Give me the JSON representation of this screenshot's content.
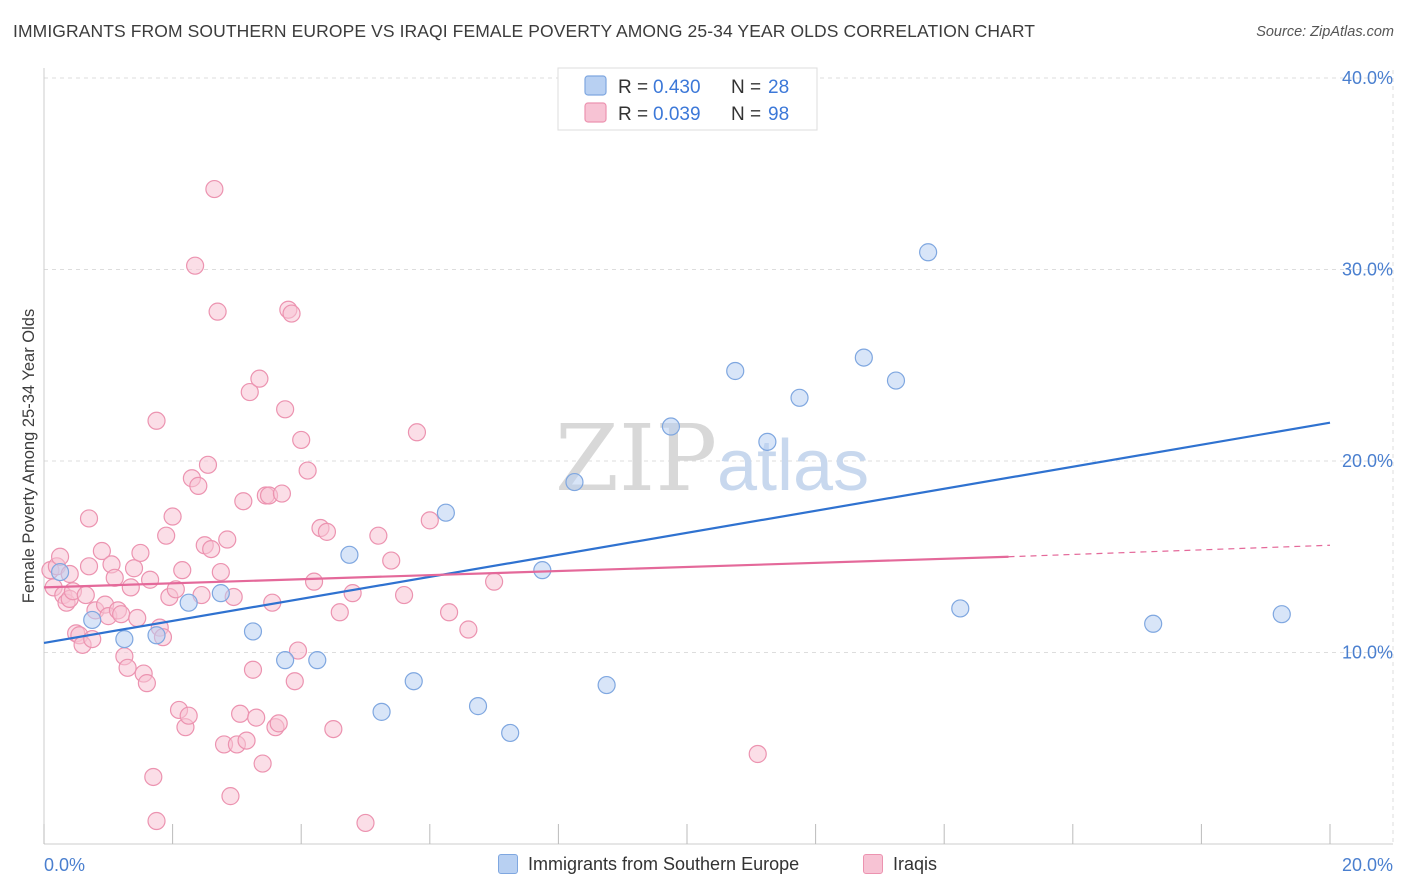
{
  "header": {
    "title": "IMMIGRANTS FROM SOUTHERN EUROPE VS IRAQI FEMALE POVERTY AMONG 25-34 YEAR OLDS CORRELATION CHART",
    "source": "Source: ZipAtlas.com"
  },
  "watermark": {
    "zip": "ZIP",
    "atlas": "atlas"
  },
  "legend": {
    "rows": [
      {
        "r_label": "R =",
        "r_value": "0.430",
        "n_label": "N =",
        "n_value": "28"
      },
      {
        "r_label": "R =",
        "r_value": "0.039",
        "n_label": "N =",
        "n_value": "98"
      }
    ]
  },
  "bottom_legend": {
    "blue": "Immigrants from Southern Europe",
    "pink": "Iraqis"
  },
  "colors": {
    "blue_fill": "#b8d0f2",
    "blue_stroke": "#7fa7e0",
    "blue_line": "#2f72d0",
    "pink_fill": "#f7c3d4",
    "pink_stroke": "#ec93b0",
    "pink_line": "#e4699a",
    "tick_text": "#4a7fcf",
    "grid": "#dddddd"
  },
  "chart_data": {
    "type": "scatter",
    "xlabel": "",
    "ylabel": "Female Poverty Among 25-34 Year Olds",
    "xlim": [
      0,
      20
    ],
    "ylim": [
      0,
      40
    ],
    "x_tick_labels": [
      {
        "value": 0,
        "label": "0.0%"
      },
      {
        "value": 20,
        "label": "20.0%"
      }
    ],
    "y_tick_labels": [
      {
        "value": 10,
        "label": "10.0%"
      },
      {
        "value": 20,
        "label": "20.0%"
      },
      {
        "value": 30,
        "label": "30.0%"
      },
      {
        "value": 40,
        "label": "40.0%"
      }
    ],
    "grid": true,
    "legend_position": "top-center",
    "series": [
      {
        "name": "Immigrants from Southern Europe",
        "color": "blue",
        "R": 0.43,
        "N": 28,
        "trend": {
          "x": [
            0,
            20
          ],
          "y": [
            10.5,
            22.0
          ]
        },
        "points": [
          [
            0.25,
            14.2
          ],
          [
            0.75,
            11.7
          ],
          [
            1.25,
            10.7
          ],
          [
            1.75,
            10.9
          ],
          [
            2.25,
            12.6
          ],
          [
            2.75,
            13.1
          ],
          [
            3.25,
            11.1
          ],
          [
            3.75,
            9.6
          ],
          [
            4.25,
            9.6
          ],
          [
            4.75,
            15.1
          ],
          [
            5.25,
            6.9
          ],
          [
            5.75,
            8.5
          ],
          [
            6.25,
            17.3
          ],
          [
            6.75,
            7.2
          ],
          [
            7.25,
            5.8
          ],
          [
            7.75,
            14.3
          ],
          [
            8.25,
            18.9
          ],
          [
            8.75,
            8.3
          ],
          [
            9.75,
            21.8
          ],
          [
            10.75,
            24.7
          ],
          [
            11.25,
            21.0
          ],
          [
            11.75,
            23.3
          ],
          [
            12.75,
            25.4
          ],
          [
            13.25,
            24.2
          ],
          [
            13.75,
            30.9
          ],
          [
            14.25,
            12.3
          ],
          [
            17.25,
            11.5
          ],
          [
            19.25,
            12.0
          ]
        ]
      },
      {
        "name": "Iraqis",
        "color": "pink",
        "R": 0.039,
        "N": 98,
        "trend": {
          "x": [
            0,
            15
          ],
          "y": [
            13.4,
            15.0
          ]
        },
        "trend_dashed": {
          "x": [
            15,
            20
          ],
          "y": [
            15.0,
            15.6
          ]
        },
        "points": [
          [
            0.1,
            14.3
          ],
          [
            0.15,
            13.4
          ],
          [
            0.2,
            14.5
          ],
          [
            0.25,
            15.0
          ],
          [
            0.3,
            13.0
          ],
          [
            0.35,
            12.6
          ],
          [
            0.4,
            12.8
          ],
          [
            0.45,
            13.2
          ],
          [
            0.5,
            11.0
          ],
          [
            0.55,
            10.9
          ],
          [
            0.6,
            10.4
          ],
          [
            0.65,
            13.0
          ],
          [
            0.7,
            14.5
          ],
          [
            0.75,
            10.7
          ],
          [
            0.8,
            12.2
          ],
          [
            0.7,
            17.0
          ],
          [
            0.9,
            15.3
          ],
          [
            0.95,
            12.5
          ],
          [
            1.0,
            11.9
          ],
          [
            1.05,
            14.6
          ],
          [
            1.1,
            13.9
          ],
          [
            1.15,
            12.2
          ],
          [
            1.2,
            12.0
          ],
          [
            1.25,
            9.8
          ],
          [
            1.3,
            9.2
          ],
          [
            1.35,
            13.4
          ],
          [
            1.4,
            14.4
          ],
          [
            1.45,
            11.8
          ],
          [
            1.5,
            15.2
          ],
          [
            1.55,
            8.9
          ],
          [
            1.6,
            8.4
          ],
          [
            1.65,
            13.8
          ],
          [
            1.7,
            3.5
          ],
          [
            1.75,
            22.1
          ],
          [
            1.8,
            11.3
          ],
          [
            1.85,
            10.8
          ],
          [
            1.9,
            16.1
          ],
          [
            1.95,
            12.9
          ],
          [
            2.0,
            17.1
          ],
          [
            2.05,
            13.3
          ],
          [
            2.1,
            7.0
          ],
          [
            2.15,
            14.3
          ],
          [
            2.2,
            6.1
          ],
          [
            2.25,
            6.7
          ],
          [
            2.3,
            19.1
          ],
          [
            2.35,
            30.2
          ],
          [
            2.4,
            18.7
          ],
          [
            2.45,
            13.0
          ],
          [
            2.5,
            15.6
          ],
          [
            2.55,
            19.8
          ],
          [
            2.6,
            15.4
          ],
          [
            2.65,
            34.2
          ],
          [
            2.7,
            27.8
          ],
          [
            2.75,
            14.2
          ],
          [
            2.8,
            5.2
          ],
          [
            2.85,
            15.9
          ],
          [
            2.9,
            2.5
          ],
          [
            2.95,
            12.9
          ],
          [
            3.0,
            5.2
          ],
          [
            3.05,
            6.8
          ],
          [
            3.1,
            17.9
          ],
          [
            3.15,
            5.4
          ],
          [
            3.2,
            23.6
          ],
          [
            3.25,
            9.1
          ],
          [
            3.3,
            6.6
          ],
          [
            3.35,
            24.3
          ],
          [
            3.4,
            4.2
          ],
          [
            3.45,
            18.2
          ],
          [
            3.5,
            18.2
          ],
          [
            3.55,
            12.6
          ],
          [
            3.6,
            6.1
          ],
          [
            3.65,
            6.3
          ],
          [
            3.7,
            18.3
          ],
          [
            3.75,
            22.7
          ],
          [
            3.8,
            27.9
          ],
          [
            3.85,
            27.7
          ],
          [
            3.9,
            8.5
          ],
          [
            3.95,
            10.1
          ],
          [
            4.0,
            21.1
          ],
          [
            4.1,
            19.5
          ],
          [
            4.2,
            13.7
          ],
          [
            4.3,
            16.5
          ],
          [
            4.4,
            16.3
          ],
          [
            4.5,
            6.0
          ],
          [
            4.6,
            12.1
          ],
          [
            4.8,
            13.1
          ],
          [
            5.0,
            1.1
          ],
          [
            5.2,
            16.1
          ],
          [
            5.4,
            14.8
          ],
          [
            5.6,
            13.0
          ],
          [
            5.8,
            21.5
          ],
          [
            6.0,
            16.9
          ],
          [
            6.3,
            12.1
          ],
          [
            6.6,
            11.2
          ],
          [
            7.0,
            13.7
          ],
          [
            1.75,
            1.2
          ],
          [
            0.4,
            14.1
          ],
          [
            11.1,
            4.7
          ]
        ]
      }
    ]
  }
}
